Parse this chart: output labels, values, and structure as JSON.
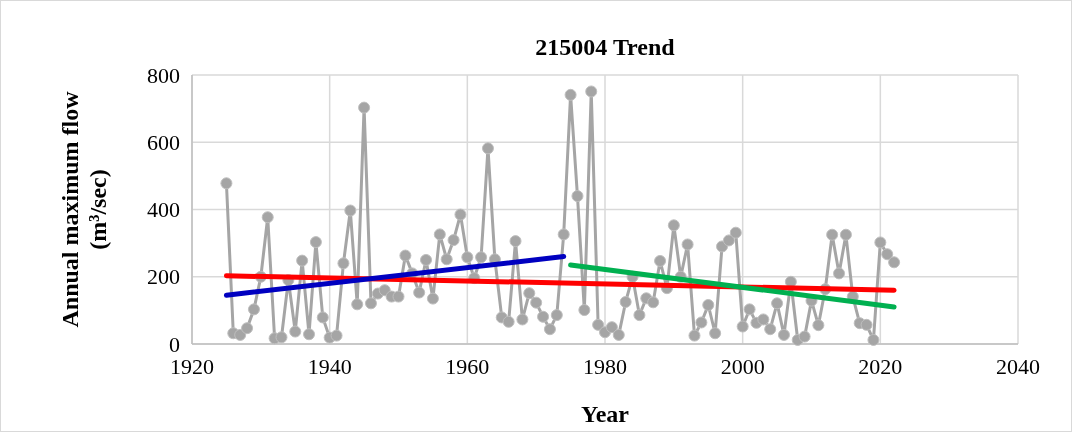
{
  "chart_data": {
    "type": "line",
    "title": "215004 Trend",
    "xlabel": "Year",
    "ylabel": "Annual maximum flow (m³/sec)",
    "xlim": [
      1920,
      2040
    ],
    "xticks": [
      1920,
      1940,
      1960,
      1980,
      2000,
      2020,
      2040
    ],
    "ylim": [
      0,
      800
    ],
    "yticks": [
      0,
      200,
      400,
      600,
      800
    ],
    "grid": true,
    "series": [
      {
        "color": "#a5a5a5",
        "marker": "circle",
        "x": [
          1925,
          1926,
          1927,
          1928,
          1929,
          1930,
          1931,
          1932,
          1933,
          1934,
          1935,
          1936,
          1937,
          1938,
          1939,
          1940,
          1941,
          1942,
          1943,
          1944,
          1945,
          1946,
          1947,
          1948,
          1949,
          1950,
          1951,
          1952,
          1953,
          1954,
          1955,
          1956,
          1957,
          1958,
          1959,
          1960,
          1961,
          1962,
          1963,
          1964,
          1965,
          1966,
          1967,
          1968,
          1969,
          1970,
          1971,
          1972,
          1973,
          1974,
          1975,
          1976,
          1977,
          1978,
          1979,
          1980,
          1981,
          1982,
          1983,
          1984,
          1985,
          1986,
          1987,
          1988,
          1989,
          1990,
          1991,
          1992,
          1993,
          1994,
          1995,
          1996,
          1997,
          1998,
          1999,
          2000,
          2001,
          2002,
          2003,
          2004,
          2005,
          2006,
          2007,
          2008,
          2009,
          2010,
          2011,
          2012,
          2013,
          2014,
          2015,
          2016,
          2017,
          2018,
          2019,
          2020,
          2021,
          2022
        ],
        "values": [
          478,
          32,
          27,
          47,
          103,
          200,
          377,
          17,
          20,
          190,
          37,
          248,
          29,
          303,
          79,
          19,
          25,
          240,
          397,
          118,
          703,
          121,
          150,
          160,
          141,
          141,
          263,
          210,
          153,
          250,
          135,
          326,
          252,
          309,
          385,
          258,
          196,
          258,
          582,
          252,
          79,
          66,
          306,
          73,
          151,
          123,
          81,
          44,
          86,
          326,
          741,
          440,
          101,
          751,
          57,
          35,
          50,
          27,
          125,
          200,
          86,
          136,
          124,
          247,
          166,
          353,
          200,
          296,
          25,
          64,
          116,
          32,
          290,
          308,
          331,
          52,
          103,
          63,
          73,
          44,
          121,
          27,
          185,
          12,
          22,
          129,
          56,
          163,
          325,
          210,
          325,
          141,
          62,
          57,
          12,
          302,
          267,
          243
        ]
      },
      {
        "color": "#ff0000",
        "marker": "none",
        "x": [
          1925,
          2022
        ],
        "values": [
          203,
          160
        ]
      },
      {
        "color": "#0000c0",
        "marker": "none",
        "x": [
          1925,
          1974
        ],
        "values": [
          145,
          260
        ]
      },
      {
        "color": "#00b050",
        "marker": "none",
        "x": [
          1975,
          2022
        ],
        "values": [
          235,
          110
        ]
      }
    ]
  }
}
